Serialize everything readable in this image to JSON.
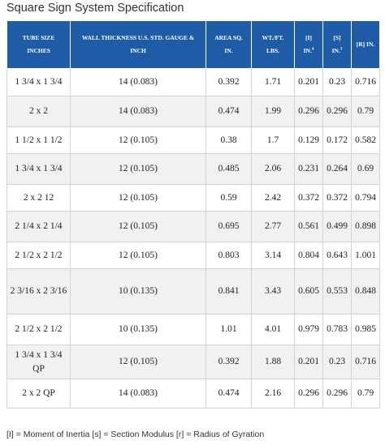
{
  "page": {
    "title": "Square Sign System Specification"
  },
  "table": {
    "headers": [
      {
        "lines": [
          "TUBE SIZE",
          "INCHES"
        ]
      },
      {
        "lines": [
          "WALL THICKNESS U.S. STD. GAUGE &",
          "INCH"
        ]
      },
      {
        "lines": [
          "AREA SQ.",
          "IN."
        ]
      },
      {
        "lines": [
          "WT./FT.",
          "LBS."
        ]
      },
      {
        "lines": [
          "[I]",
          "IN."
        ],
        "sup": "4"
      },
      {
        "lines": [
          "[S]",
          "IN."
        ],
        "sup": "3"
      },
      {
        "lines": [
          "[R] IN."
        ]
      }
    ],
    "rows": [
      [
        "1 3/4 x 1 3/4",
        "14 (0.083)",
        "0.392",
        "1.71",
        "0.201",
        "0.23",
        "0.716"
      ],
      [
        "2 x 2",
        "14 (0.083)",
        "0.474",
        "1.99",
        "0.296",
        "0.296",
        "0.79"
      ],
      [
        "1 1/2 x 1 1/2",
        "12 (0.105)",
        "0.38",
        "1.7",
        "0.129",
        "0.172",
        "0.582"
      ],
      [
        "1 3/4 x 1 3/4",
        "12 (0.105)",
        "0.485",
        "2.06",
        "0.231",
        "0.264",
        "0.69"
      ],
      [
        "2 x 2 12",
        "12 (0.105)",
        "0.59",
        "2.42",
        "0.372",
        "0.372",
        "0.794"
      ],
      [
        "2 1/4 x 2 1/4",
        "12 (0.105)",
        "0.695",
        "2.77",
        "0.561",
        "0.499",
        "0.898"
      ],
      [
        "2 1/2 x 2 1/2",
        "12 (0.105)",
        "0.803",
        "3.14",
        "0.804",
        "0.643",
        "1.001"
      ],
      [
        "2 3/16 x 2 3/16",
        "10 (0.135)",
        "0.841",
        "3.43",
        "0.605",
        "0.553",
        "0.848"
      ],
      [
        "2 1/2 x 2 1/2",
        "10 (0.135)",
        "1.01",
        "4.01",
        "0.979",
        "0.783",
        "0.985"
      ],
      [
        "1 3/4 x 1 3/4 QP",
        "12 (0.105)",
        "0.392",
        "1.88",
        "0.201",
        "0.23",
        "0.716"
      ],
      [
        "2 x 2 QP",
        "14 (0.083)",
        "0.474",
        "2.16",
        "0.296",
        "0.296",
        "0.79"
      ]
    ]
  },
  "footnote": "[I] = Moment of Inertia [s] = Section Modulus [r] = Radius of Gyration",
  "colors": {
    "header_bg": "#1e5ca8",
    "header_text": "#ffffff",
    "stripe_bg": "#f1f1f1"
  }
}
